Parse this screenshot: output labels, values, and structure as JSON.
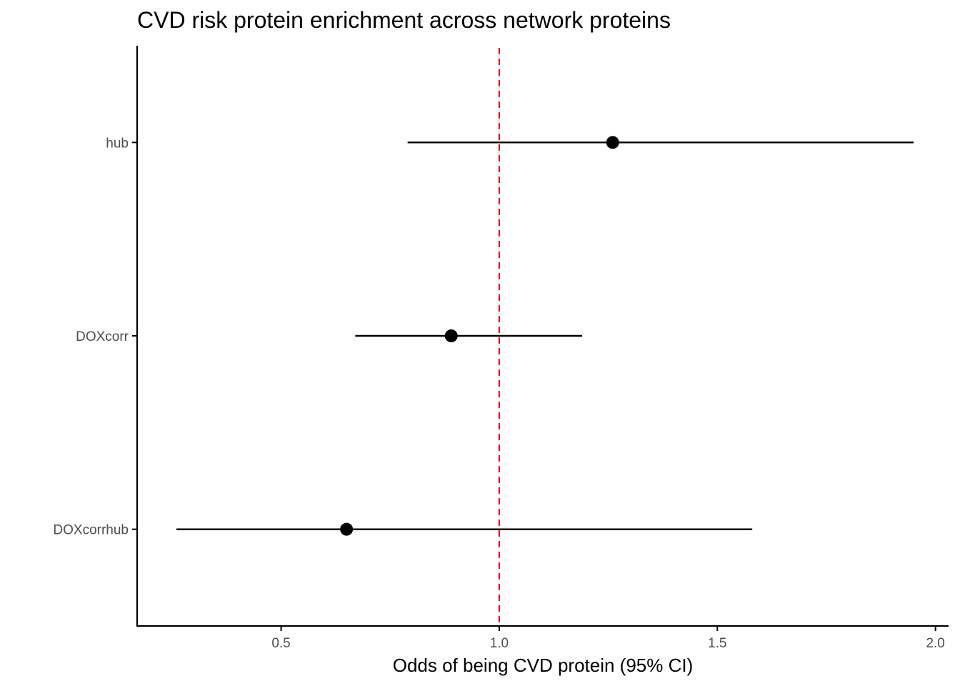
{
  "chart_data": {
    "type": "scatter",
    "subtype": "forest-plot",
    "title": "CVD risk protein enrichment across network proteins",
    "xlabel": "Odds of being CVD protein (95% CI)",
    "ylabel": "",
    "xlim": [
      0.17,
      2.03
    ],
    "x_ticks": [
      "0.5",
      "1.0",
      "1.5",
      "2.0"
    ],
    "categories": [
      "hub",
      "DOXcorr",
      "DOXcorrhub"
    ],
    "estimates": [
      1.26,
      0.89,
      0.65
    ],
    "ci_lower": [
      0.79,
      0.67,
      0.26
    ],
    "ci_upper": [
      1.95,
      1.19,
      1.58
    ],
    "reference_line": {
      "x": 1.0,
      "style": "dashed",
      "color": "#e41a1c"
    },
    "grid": false,
    "legend": "none",
    "point_color": "#000000",
    "line_color": "#000000"
  }
}
